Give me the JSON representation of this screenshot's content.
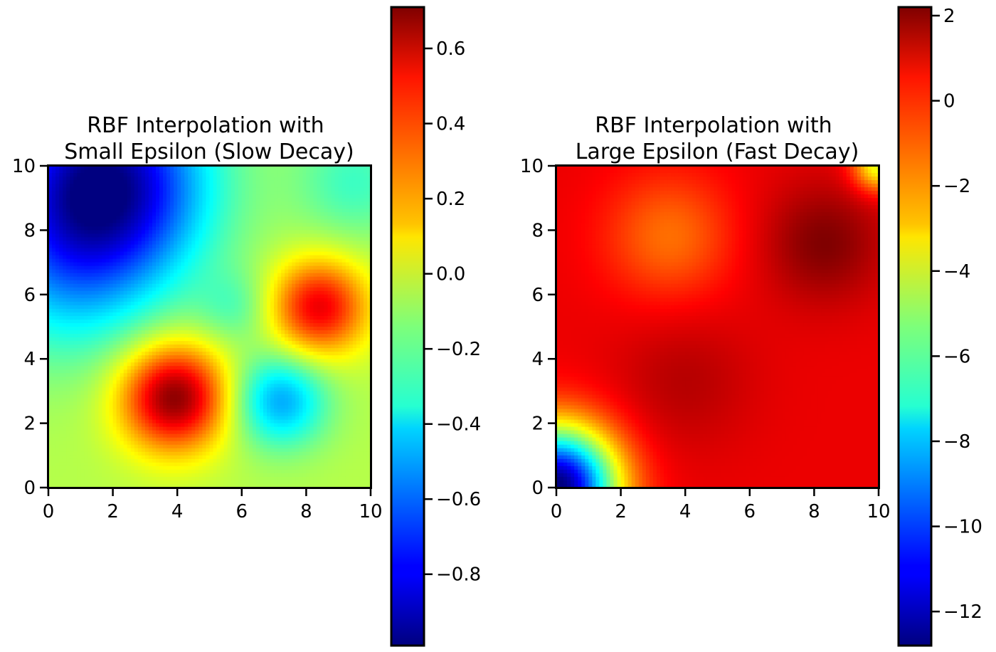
{
  "chart_data": [
    {
      "type": "heatmap",
      "title": [
        "RBF Interpolation with",
        "Small Epsilon (Slow Decay)"
      ],
      "xlabel": "",
      "ylabel": "",
      "xlim": [
        0,
        10
      ],
      "ylim": [
        0,
        10
      ],
      "xticks": [
        0,
        2,
        4,
        6,
        8,
        10
      ],
      "yticks": [
        0,
        2,
        4,
        6,
        8,
        10
      ],
      "colormap": "jet",
      "grid": false,
      "colorbar": {
        "range": [
          -0.99,
          0.71
        ],
        "ticks": [
          0.6,
          0.4,
          0.2,
          0.0,
          -0.2,
          -0.4,
          -0.6,
          -0.8
        ],
        "tick_labels": [
          "0.6",
          "0.4",
          "0.2",
          "0.0",
          "−0.2",
          "−0.4",
          "−0.6",
          "−0.8"
        ]
      },
      "field": {
        "baseline": -0.05,
        "features": [
          {
            "x": 1.7,
            "y": 9.4,
            "amplitude": -0.93,
            "sigma": 2.2
          },
          {
            "x": 0.5,
            "y": 6.5,
            "amplitude": -0.25,
            "sigma": 2.0
          },
          {
            "x": 3.9,
            "y": 2.8,
            "amplitude": 0.75,
            "sigma": 1.15
          },
          {
            "x": 8.4,
            "y": 5.6,
            "amplitude": 0.58,
            "sigma": 1.05
          },
          {
            "x": 7.2,
            "y": 2.7,
            "amplitude": -0.45,
            "sigma": 1.0
          },
          {
            "x": 5.8,
            "y": 5.6,
            "amplitude": -0.15,
            "sigma": 0.8
          },
          {
            "x": 9.5,
            "y": 9.5,
            "amplitude": -0.2,
            "sigma": 1.3
          }
        ]
      }
    },
    {
      "type": "heatmap",
      "title": [
        "RBF Interpolation with",
        "Large Epsilon (Fast Decay)"
      ],
      "xlabel": "",
      "ylabel": "",
      "xlim": [
        0,
        10
      ],
      "ylim": [
        0,
        10
      ],
      "xticks": [
        0,
        2,
        4,
        6,
        8,
        10
      ],
      "yticks": [
        0,
        2,
        4,
        6,
        8,
        10
      ],
      "colormap": "jet",
      "grid": false,
      "colorbar": {
        "range": [
          -12.8,
          2.2
        ],
        "ticks": [
          2,
          0,
          -2,
          -4,
          -6,
          -8,
          -10,
          -12
        ],
        "tick_labels": [
          "2",
          "0",
          "−2",
          "−4",
          "−6",
          "−8",
          "−10",
          "−12"
        ]
      },
      "field": {
        "baseline": 0.6,
        "features": [
          {
            "x": 8.3,
            "y": 7.6,
            "amplitude": 1.6,
            "sigma": 1.3
          },
          {
            "x": 3.5,
            "y": 7.8,
            "amplitude": -1.9,
            "sigma": 1.4
          },
          {
            "x": 4.0,
            "y": 3.3,
            "amplitude": 0.8,
            "sigma": 1.5
          },
          {
            "x": 0.0,
            "y": 0.0,
            "amplitude": -13.6,
            "sigma": 1.3
          },
          {
            "x": 10.0,
            "y": 10.0,
            "amplitude": -4.5,
            "sigma": 0.55
          }
        ]
      }
    }
  ]
}
